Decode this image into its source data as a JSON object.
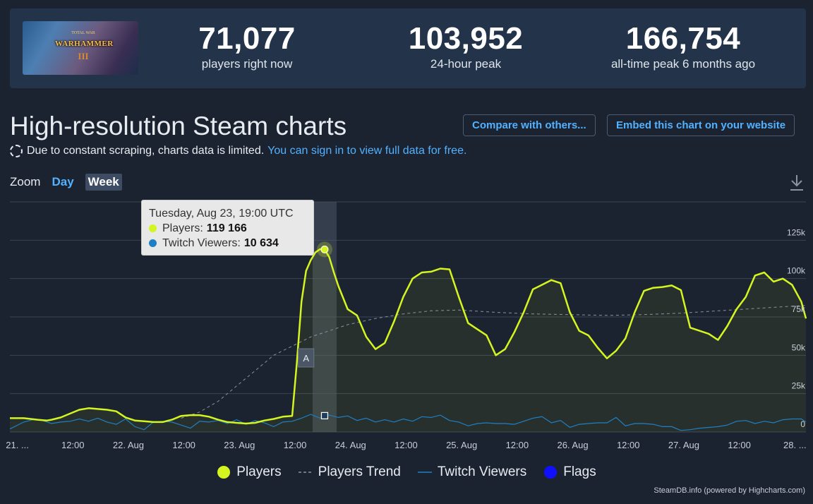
{
  "header": {
    "game_logo": {
      "small": "TOTAL WAR",
      "main": "WARHAMMER",
      "numeral": "III"
    },
    "stats": [
      {
        "value": "71,077",
        "label": "players right now"
      },
      {
        "value": "103,952",
        "label": "24-hour peak"
      },
      {
        "value": "166,754",
        "label": "all-time peak 6 months ago"
      }
    ]
  },
  "page_title": "High-resolution Steam charts",
  "buttons": {
    "compare": "Compare with others...",
    "embed": "Embed this chart on your website"
  },
  "notice": {
    "text": "Due to constant scraping, charts data is limited.",
    "link": "You can sign in to view full data for free."
  },
  "zoom": {
    "label": "Zoom",
    "options": [
      "Day",
      "Week"
    ],
    "active": "Week"
  },
  "tooltip": {
    "title": "Tuesday, Aug 23, 19:00 UTC",
    "rows": [
      {
        "label": "Players:",
        "value": "119 166",
        "color": "#d4f51f"
      },
      {
        "label": "Twitch Viewers:",
        "value": "10 634",
        "color": "#1f7fc4"
      }
    ]
  },
  "legend": [
    {
      "label": "Players",
      "color": "#d4f51f",
      "symbol": "circle"
    },
    {
      "label": "Players Trend",
      "color": "#8a93a0",
      "symbol": "dash"
    },
    {
      "label": "Twitch Viewers",
      "color": "#1f7fc4",
      "symbol": "line"
    },
    {
      "label": "Flags",
      "color": "#1010ff",
      "symbol": "circle"
    }
  ],
  "credit": "SteamDB.info (powered by Highcharts.com)",
  "chart_data": {
    "type": "line",
    "x_unit": "hours since Aug 21 00:00 UTC",
    "x_ticks": [
      {
        "x": 0,
        "label": "21. ..."
      },
      {
        "x": 12,
        "label": "12:00"
      },
      {
        "x": 24,
        "label": "22. Aug"
      },
      {
        "x": 36,
        "label": "12:00"
      },
      {
        "x": 48,
        "label": "23. Aug"
      },
      {
        "x": 60,
        "label": "12:00"
      },
      {
        "x": 72,
        "label": "24. Aug"
      },
      {
        "x": 84,
        "label": "12:00"
      },
      {
        "x": 96,
        "label": "25. Aug"
      },
      {
        "x": 108,
        "label": "12:00"
      },
      {
        "x": 120,
        "label": "26. Aug"
      },
      {
        "x": 132,
        "label": "12:00"
      },
      {
        "x": 144,
        "label": "27. Aug"
      },
      {
        "x": 156,
        "label": "12:00"
      },
      {
        "x": 168,
        "label": "28. ..."
      }
    ],
    "y_ticks": [
      {
        "y": 0,
        "label": "0"
      },
      {
        "y": 25000,
        "label": "25k"
      },
      {
        "y": 50000,
        "label": "50k"
      },
      {
        "y": 75000,
        "label": "75k"
      },
      {
        "y": 100000,
        "label": "100k"
      },
      {
        "y": 125000,
        "label": "125k"
      }
    ],
    "ylim": [
      0,
      150000
    ],
    "xlim": [
      -1,
      171
    ],
    "grid": true,
    "legend_position": "bottom-center",
    "annotations": [
      {
        "x": 63,
        "label": "A"
      }
    ],
    "highlight_x": 67,
    "series": [
      {
        "name": "Players",
        "color": "#d4f51f",
        "x": [
          -1,
          2,
          5,
          7,
          8,
          10,
          12,
          14,
          16,
          18,
          20,
          22,
          24,
          26,
          28,
          30,
          32,
          34,
          36,
          38,
          40,
          42,
          44,
          46,
          48,
          50,
          52,
          54,
          56,
          58,
          60,
          61,
          62,
          63,
          64,
          65,
          66,
          67,
          68,
          69,
          70,
          72,
          74,
          76,
          78,
          80,
          82,
          84,
          86,
          88,
          90,
          92,
          94,
          96,
          98,
          100,
          102,
          104,
          106,
          108,
          110,
          112,
          114,
          116,
          118,
          120,
          122,
          124,
          126,
          128,
          130,
          132,
          134,
          136,
          138,
          140,
          142,
          144,
          146,
          148,
          150,
          152,
          154,
          156,
          158,
          160,
          162,
          164,
          166,
          168,
          170,
          171
        ],
        "y": [
          9000,
          9000,
          8000,
          7500,
          8000,
          9500,
          12000,
          14500,
          15500,
          15000,
          14500,
          13500,
          9500,
          7500,
          7000,
          6500,
          6500,
          8000,
          10500,
          11000,
          11000,
          10000,
          8000,
          6500,
          6000,
          5500,
          6000,
          7500,
          8500,
          10000,
          10500,
          45000,
          85000,
          105000,
          112000,
          117000,
          119166,
          119000,
          114000,
          104000,
          95000,
          80000,
          76000,
          62000,
          54000,
          58000,
          72000,
          88000,
          100000,
          104000,
          104500,
          106500,
          106000,
          88000,
          71000,
          67000,
          63000,
          50000,
          54000,
          65000,
          78000,
          93000,
          96000,
          99000,
          97000,
          78000,
          66000,
          63000,
          55000,
          48000,
          53000,
          61000,
          78000,
          92000,
          94000,
          94500,
          95500,
          92500,
          68000,
          66000,
          64000,
          60000,
          69000,
          80000,
          88000,
          102000,
          104000,
          98000,
          100000,
          96000,
          85000,
          74000
        ]
      },
      {
        "name": "Players Trend",
        "color": "#8a93a0",
        "x": [
          36,
          40,
          44,
          48,
          52,
          56,
          60,
          64,
          68,
          72,
          78,
          84,
          90,
          96,
          104,
          112,
          120,
          128,
          136,
          144,
          152,
          160,
          168,
          171
        ],
        "y": [
          9000,
          13000,
          20000,
          30000,
          40000,
          50000,
          56000,
          62000,
          66000,
          70000,
          74000,
          77000,
          79000,
          79500,
          78000,
          77000,
          76500,
          76000,
          76500,
          77500,
          79000,
          80500,
          82000,
          82500
        ]
      },
      {
        "name": "Twitch Viewers",
        "color": "#1f7fc4",
        "x": [
          -1,
          2,
          4,
          6,
          8,
          10,
          12,
          14,
          16,
          18,
          20,
          22,
          24,
          26,
          28,
          30,
          32,
          34,
          36,
          38,
          40,
          42,
          44,
          46,
          48,
          50,
          52,
          54,
          56,
          58,
          60,
          62,
          64,
          66,
          67,
          68,
          70,
          72,
          74,
          76,
          78,
          80,
          82,
          84,
          86,
          88,
          90,
          92,
          94,
          96,
          98,
          100,
          102,
          104,
          106,
          108,
          110,
          112,
          114,
          116,
          118,
          120,
          122,
          124,
          126,
          128,
          130,
          132,
          134,
          136,
          138,
          140,
          142,
          144,
          146,
          148,
          150,
          152,
          154,
          156,
          158,
          160,
          162,
          164,
          166,
          168,
          170,
          171
        ],
        "y": [
          2000,
          6500,
          8000,
          7500,
          5500,
          6500,
          7000,
          8500,
          7000,
          9000,
          6500,
          5000,
          8500,
          3500,
          1500,
          6500,
          7000,
          6500,
          4500,
          2500,
          7000,
          6500,
          7500,
          5500,
          8000,
          5000,
          7500,
          6000,
          3500,
          6500,
          7000,
          9000,
          11500,
          9000,
          10634,
          11000,
          9500,
          10500,
          7500,
          9000,
          6500,
          8000,
          6500,
          8500,
          7000,
          10000,
          9500,
          11000,
          7500,
          6500,
          4000,
          5500,
          6000,
          5500,
          5500,
          5000,
          7000,
          9000,
          10000,
          6000,
          7500,
          3000,
          5000,
          5500,
          6000,
          6000,
          9500,
          4000,
          5500,
          5500,
          5000,
          3500,
          3500,
          1000,
          1500,
          2500,
          3000,
          3500,
          4500,
          7000,
          7500,
          5500,
          7000,
          6000,
          8000,
          8500,
          8500,
          6500
        ]
      }
    ]
  }
}
